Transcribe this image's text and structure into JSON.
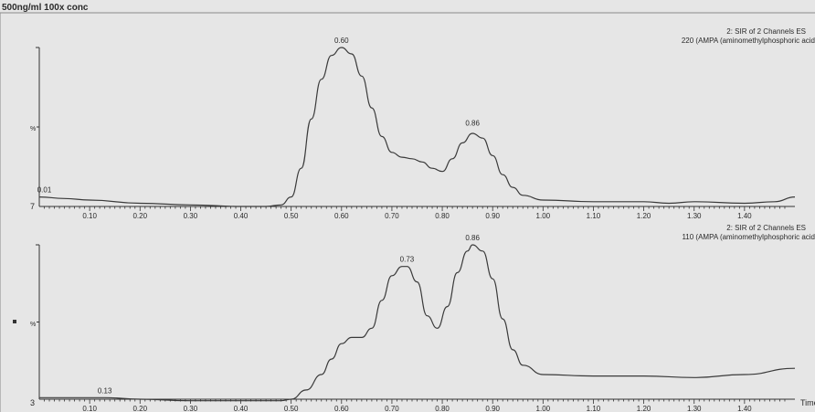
{
  "window_title": "500ng/ml 100x conc",
  "time_label": "Time",
  "chart_data": [
    {
      "type": "line",
      "title": "500ng/ml 100x conc",
      "channel": "2: SIR of 2 Channels ES",
      "trace_label": "220 (AMPA (aminomethylphosphoric acid",
      "ylabel": "%",
      "baseline_label": "7",
      "xlim": [
        0.0,
        1.5
      ],
      "ylim": [
        0,
        100
      ],
      "x_ticks": [
        "0.10",
        "0.20",
        "0.30",
        "0.40",
        "0.50",
        "0.60",
        "0.70",
        "0.80",
        "0.90",
        "1.00",
        "1.10",
        "1.20",
        "1.30",
        "1.40"
      ],
      "peak_labels": [
        {
          "text": "0.01",
          "x": 0.01,
          "y": 6
        },
        {
          "text": "0.60",
          "x": 0.6,
          "y": 100
        },
        {
          "text": "0.86",
          "x": 0.86,
          "y": 48
        }
      ],
      "series": [
        {
          "x": [
            0.0,
            0.05,
            0.1,
            0.2,
            0.3,
            0.4,
            0.45,
            0.48,
            0.5,
            0.52,
            0.54,
            0.56,
            0.58,
            0.6,
            0.62,
            0.64,
            0.66,
            0.68,
            0.7,
            0.72,
            0.74,
            0.76,
            0.78,
            0.8,
            0.82,
            0.84,
            0.86,
            0.88,
            0.9,
            0.92,
            0.94,
            0.96,
            1.0,
            1.1,
            1.2,
            1.25,
            1.3,
            1.4,
            1.46,
            1.5
          ],
          "y": [
            6,
            5,
            4,
            2,
            1,
            0,
            0,
            1,
            6,
            24,
            55,
            80,
            95,
            100,
            96,
            82,
            62,
            44,
            34,
            31,
            30,
            28,
            24,
            22,
            30,
            40,
            46,
            43,
            32,
            20,
            12,
            7,
            4,
            3,
            3,
            2,
            3,
            2,
            3,
            6
          ]
        }
      ]
    },
    {
      "type": "line",
      "channel": "2: SIR of 2 Channels ES",
      "trace_label": "110 (AMPA (aminomethylphosphoric acid",
      "ylabel": "%",
      "baseline_label": "3",
      "xlim": [
        0.0,
        1.5
      ],
      "ylim": [
        0,
        100
      ],
      "x_ticks": [
        "0.10",
        "0.20",
        "0.30",
        "0.40",
        "0.50",
        "0.60",
        "0.70",
        "0.80",
        "0.90",
        "1.00",
        "1.10",
        "1.20",
        "1.30",
        "1.40"
      ],
      "peak_labels": [
        {
          "text": "0.13",
          "x": 0.13,
          "y": 1
        },
        {
          "text": "0.73",
          "x": 0.73,
          "y": 86
        },
        {
          "text": "0.86",
          "x": 0.86,
          "y": 100
        }
      ],
      "series": [
        {
          "x": [
            0.0,
            0.05,
            0.1,
            0.13,
            0.2,
            0.3,
            0.4,
            0.48,
            0.5,
            0.53,
            0.56,
            0.58,
            0.6,
            0.62,
            0.64,
            0.66,
            0.68,
            0.7,
            0.72,
            0.73,
            0.75,
            0.77,
            0.79,
            0.81,
            0.83,
            0.85,
            0.86,
            0.88,
            0.9,
            0.92,
            0.94,
            0.96,
            1.0,
            1.1,
            1.2,
            1.3,
            1.4,
            1.5
          ],
          "y": [
            1,
            1,
            1,
            1,
            0,
            -1,
            -1,
            -1,
            0,
            6,
            16,
            26,
            36,
            40,
            40,
            46,
            64,
            80,
            86,
            86,
            76,
            54,
            46,
            60,
            82,
            96,
            100,
            96,
            78,
            52,
            32,
            22,
            16,
            15,
            15,
            14,
            16,
            20
          ]
        }
      ]
    }
  ]
}
